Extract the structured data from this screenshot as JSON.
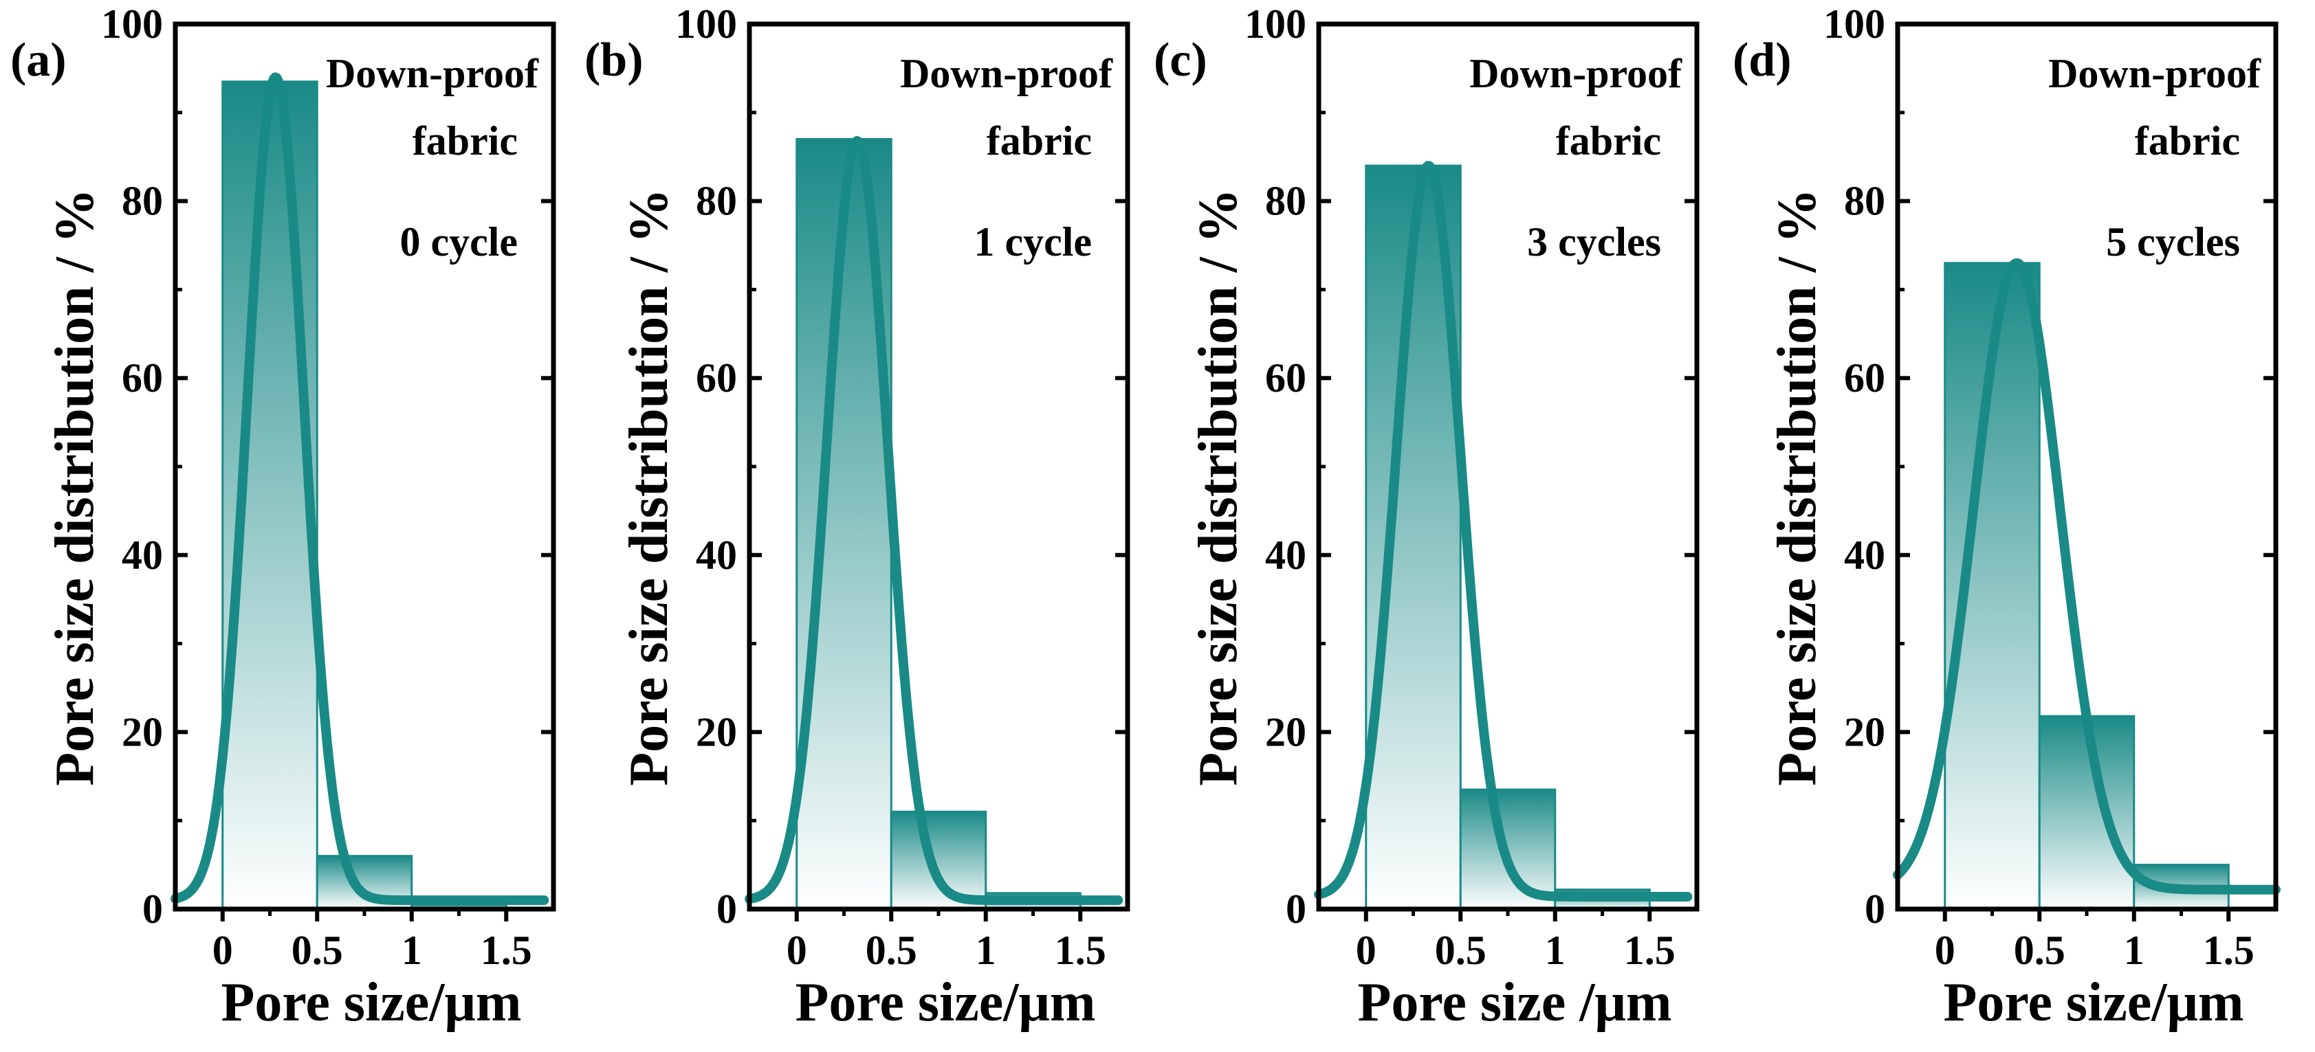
{
  "figure": {
    "series_color": "#1a8a86",
    "bar_edge_color": "#1a8a86",
    "axis_color": "#000000"
  },
  "chart_data": [
    {
      "type": "bar",
      "panel_label": "(a)",
      "title_line1": "Down-proof",
      "title_line2": "fabric",
      "condition": "0 cycle",
      "xlabel": "Pore size/μm",
      "ylabel": "Pore size distribution / %",
      "xlim": [
        -0.25,
        1.75
      ],
      "ylim": [
        0,
        100
      ],
      "xticks": [
        0,
        0.5,
        1,
        1.5
      ],
      "xtick_labels": [
        "0",
        "0.5",
        "1",
        "1.5"
      ],
      "yticks": [
        0,
        20,
        40,
        60,
        80,
        100
      ],
      "ytick_labels": [
        "0",
        "20",
        "40",
        "60",
        "80",
        "100"
      ],
      "bins": [
        [
          0,
          0.5
        ],
        [
          0.5,
          1.0
        ],
        [
          1.0,
          1.5
        ]
      ],
      "values": [
        93.5,
        6.0,
        0.5
      ],
      "fit": {
        "type": "gaussian",
        "center": 0.28,
        "sigma": 0.15,
        "amplitude": 93.0,
        "baseline": 1.0,
        "x_range": [
          -0.25,
          1.7
        ]
      }
    },
    {
      "type": "bar",
      "panel_label": "(b)",
      "title_line1": "Down-proof",
      "title_line2": "fabric",
      "condition": "1 cycle",
      "xlabel": "Pore size/μm",
      "ylabel": "Pore size distribution / %",
      "xlim": [
        -0.25,
        1.75
      ],
      "ylim": [
        0,
        100
      ],
      "xticks": [
        0,
        0.5,
        1,
        1.5
      ],
      "xtick_labels": [
        "0",
        "0.5",
        "1",
        "1.5"
      ],
      "yticks": [
        0,
        20,
        40,
        60,
        80,
        100
      ],
      "ytick_labels": [
        "0",
        "20",
        "40",
        "60",
        "80",
        "100"
      ],
      "bins": [
        [
          0,
          0.5
        ],
        [
          0.5,
          1.0
        ],
        [
          1.0,
          1.5
        ]
      ],
      "values": [
        87.0,
        11.0,
        1.8
      ],
      "fit": {
        "type": "gaussian",
        "center": 0.32,
        "sigma": 0.16,
        "amplitude": 85.8,
        "baseline": 1.0,
        "x_range": [
          -0.25,
          1.7
        ]
      }
    },
    {
      "type": "bar",
      "panel_label": "(c)",
      "title_line1": "Down-proof",
      "title_line2": "fabric",
      "condition": "3 cycles",
      "xlabel": "Pore size /μm",
      "ylabel": "Pore size distribution / %",
      "xlim": [
        -0.25,
        1.75
      ],
      "ylim": [
        0,
        100
      ],
      "xticks": [
        0,
        0.5,
        1,
        1.5
      ],
      "xtick_labels": [
        "0",
        "0.5",
        "1",
        "1.5"
      ],
      "yticks": [
        0,
        20,
        40,
        60,
        80,
        100
      ],
      "ytick_labels": [
        "0",
        "20",
        "40",
        "60",
        "80",
        "100"
      ],
      "bins": [
        [
          0,
          0.5
        ],
        [
          0.5,
          1.0
        ],
        [
          1.0,
          1.5
        ]
      ],
      "values": [
        84.0,
        13.5,
        2.2
      ],
      "fit": {
        "type": "gaussian",
        "center": 0.33,
        "sigma": 0.17,
        "amplitude": 82.6,
        "baseline": 1.4,
        "x_range": [
          -0.25,
          1.7
        ]
      }
    },
    {
      "type": "bar",
      "panel_label": "(d)",
      "title_line1": "Down-proof",
      "title_line2": "fabric",
      "condition": "5 cycles",
      "xlabel": "Pore size/μm",
      "ylabel": "Pore size distribution / %",
      "xlim": [
        -0.25,
        1.75
      ],
      "ylim": [
        0,
        100
      ],
      "xticks": [
        0,
        0.5,
        1,
        1.5
      ],
      "xtick_labels": [
        "0",
        "0.5",
        "1",
        "1.5"
      ],
      "yticks": [
        0,
        20,
        40,
        60,
        80,
        100
      ],
      "ytick_labels": [
        "0",
        "20",
        "40",
        "60",
        "80",
        "100"
      ],
      "bins": [
        [
          0,
          0.5
        ],
        [
          0.5,
          1.0
        ],
        [
          1.0,
          1.5
        ]
      ],
      "values": [
        73.0,
        21.8,
        5.0
      ],
      "fit": {
        "type": "gaussian",
        "center": 0.38,
        "sigma": 0.23,
        "amplitude": 70.8,
        "baseline": 2.2,
        "x_range": [
          -0.25,
          1.75
        ]
      }
    }
  ]
}
